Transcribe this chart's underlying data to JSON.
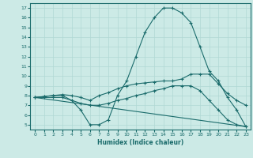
{
  "xlabel": "Humidex (Indice chaleur)",
  "background_color": "#cceae6",
  "line_color": "#1a6b6b",
  "grid_color": "#b0d8d4",
  "xlim": [
    -0.5,
    23.5
  ],
  "ylim": [
    4.5,
    17.5
  ],
  "xticks": [
    0,
    1,
    2,
    3,
    4,
    5,
    6,
    7,
    8,
    9,
    10,
    11,
    12,
    13,
    14,
    15,
    16,
    17,
    18,
    19,
    20,
    21,
    22,
    23
  ],
  "yticks": [
    5,
    6,
    7,
    8,
    9,
    10,
    11,
    12,
    13,
    14,
    15,
    16,
    17
  ],
  "line1_x": [
    0,
    1,
    2,
    3,
    4,
    5,
    6,
    7,
    8,
    9,
    10,
    11,
    12,
    13,
    14,
    15,
    16,
    17,
    18,
    19,
    20,
    21,
    22,
    23
  ],
  "line1_y": [
    7.8,
    7.9,
    8.0,
    8.0,
    7.5,
    6.5,
    5.0,
    5.0,
    5.5,
    8.0,
    9.5,
    12.0,
    14.5,
    16.0,
    17.0,
    17.0,
    16.5,
    15.5,
    13.0,
    10.5,
    9.5,
    7.8,
    6.5,
    4.8
  ],
  "line2_x": [
    0,
    1,
    2,
    3,
    4,
    5,
    6,
    7,
    8,
    9,
    10,
    11,
    12,
    13,
    14,
    15,
    16,
    17,
    18,
    19,
    20,
    21,
    22,
    23
  ],
  "line2_y": [
    7.8,
    7.9,
    8.0,
    8.1,
    8.0,
    7.8,
    7.5,
    8.0,
    8.3,
    8.7,
    9.0,
    9.2,
    9.3,
    9.4,
    9.5,
    9.5,
    9.7,
    10.2,
    10.2,
    10.2,
    9.2,
    8.2,
    7.5,
    7.0
  ],
  "line3_x": [
    0,
    1,
    2,
    3,
    4,
    5,
    6,
    7,
    8,
    9,
    10,
    11,
    12,
    13,
    14,
    15,
    16,
    17,
    18,
    19,
    20,
    21,
    22,
    23
  ],
  "line3_y": [
    7.8,
    7.8,
    7.8,
    7.8,
    7.5,
    7.2,
    7.0,
    7.0,
    7.2,
    7.5,
    7.7,
    8.0,
    8.2,
    8.5,
    8.7,
    9.0,
    9.0,
    9.0,
    8.5,
    7.5,
    6.5,
    5.5,
    5.0,
    4.8
  ],
  "line4_x": [
    0,
    23
  ],
  "line4_y": [
    7.8,
    4.8
  ]
}
